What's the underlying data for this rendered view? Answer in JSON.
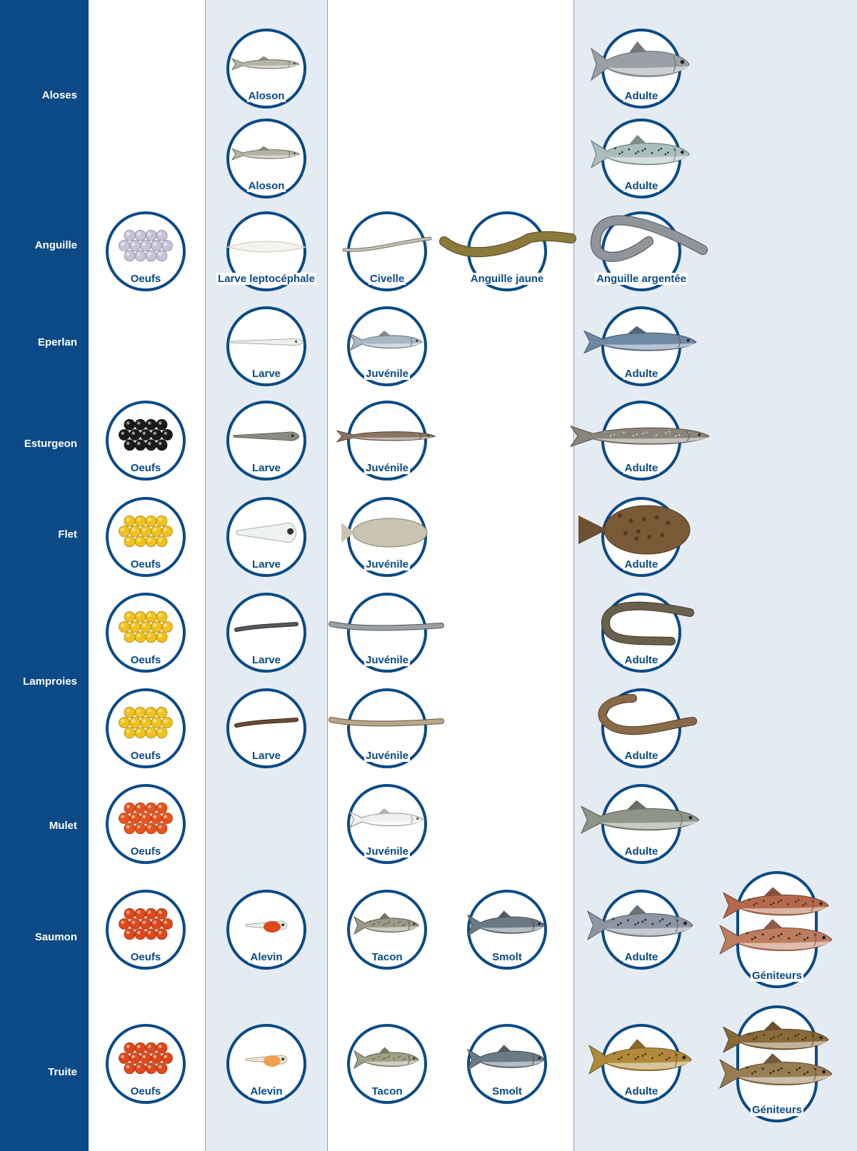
{
  "colors": {
    "sidebar": "#0b4a86",
    "band": "#e4ebf3",
    "ring": "#0b4a86",
    "label": "#0b4a86"
  },
  "species": [
    {
      "name": "Aloses"
    },
    {
      "name": "Anguille"
    },
    {
      "name": "Eperlan"
    },
    {
      "name": "Esturgeon"
    },
    {
      "name": "Flet"
    },
    {
      "name": "Lamproies"
    },
    {
      "name": "Mulet"
    },
    {
      "name": "Saumon"
    },
    {
      "name": "Truite"
    }
  ],
  "stages": [
    {
      "label": "Aloson",
      "image": "alose-juvenile-icon"
    },
    {
      "label": "Adulte",
      "image": "alose-adult-icon",
      "color": "#9aa0a5"
    },
    {
      "label": "Aloson",
      "image": "alose-juvenile-icon"
    },
    {
      "label": "Adulte",
      "image": "alose-feinte-adult-icon",
      "color": "#a9bfbc"
    },
    {
      "label": "Oeufs",
      "image": "eggs-icon",
      "color": "#c9c3da"
    },
    {
      "label": "Larve leptocéphale",
      "image": "leptocephalus-larva-icon"
    },
    {
      "label": "Civelle",
      "image": "glass-eel-icon"
    },
    {
      "label": "Anguille jaune",
      "image": "yellow-eel-icon",
      "color": "#8c7a3a"
    },
    {
      "label": "Anguille argentée",
      "image": "silver-eel-icon",
      "color": "#8f959b"
    },
    {
      "label": "Larve",
      "image": "smelt-larva-icon"
    },
    {
      "label": "Juvénile",
      "image": "smelt-juvenile-icon",
      "color": "#a9b6c4"
    },
    {
      "label": "Adulte",
      "image": "smelt-adult-icon",
      "color": "#6f88a3"
    },
    {
      "label": "Oeufs",
      "image": "eggs-icon",
      "color": "#1a1a1a"
    },
    {
      "label": "Larve",
      "image": "sturgeon-larva-icon",
      "color": "#8a8a80"
    },
    {
      "label": "Juvénile",
      "image": "sturgeon-juvenile-icon",
      "color": "#8a7560"
    },
    {
      "label": "Adulte",
      "image": "sturgeon-adult-icon",
      "color": "#8b8479"
    },
    {
      "label": "Oeufs",
      "image": "eggs-icon",
      "color": "#f2c21c"
    },
    {
      "label": "Larve",
      "image": "flounder-larva-icon"
    },
    {
      "label": "Juvénile",
      "image": "flounder-juvenile-icon",
      "color": "#c8c4b0"
    },
    {
      "label": "Adulte",
      "image": "flounder-adult-icon",
      "color": "#7a5a36"
    },
    {
      "label": "Oeufs",
      "image": "eggs-icon",
      "color": "#f2c21c"
    },
    {
      "label": "Larve",
      "image": "lamprey-larva-icon",
      "color": "#55595e"
    },
    {
      "label": "Juvénile",
      "image": "lamprey-juvenile-icon",
      "color": "#9aa0a3"
    },
    {
      "label": "Adulte",
      "image": "lamprey-adult-icon",
      "color": "#6a604e"
    },
    {
      "label": "Oeufs",
      "image": "eggs-icon",
      "color": "#f2c21c"
    },
    {
      "label": "Larve",
      "image": "lamprey-larva-icon",
      "color": "#6b4a36"
    },
    {
      "label": "Juvénile",
      "image": "lamprey-juvenile-icon",
      "color": "#b8a68a"
    },
    {
      "label": "Adulte",
      "image": "sea-lamprey-adult-icon",
      "color": "#8a6a48"
    },
    {
      "label": "Oeufs",
      "image": "eggs-icon",
      "color": "#e8541c"
    },
    {
      "label": "Juvénile",
      "image": "mullet-juvenile-icon"
    },
    {
      "label": "Adulte",
      "image": "mullet-adult-icon",
      "color": "#8f9488"
    },
    {
      "label": "Oeufs",
      "image": "eggs-icon",
      "color": "#e0481a"
    },
    {
      "label": "Alevin",
      "image": "salmon-alevin-icon",
      "color": "#e0481a"
    },
    {
      "label": "Tacon",
      "image": "salmon-parr-icon",
      "color": "#9a9a86"
    },
    {
      "label": "Smolt",
      "image": "salmon-smolt-icon",
      "color": "#6c7a86"
    },
    {
      "label": "Adulte",
      "image": "salmon-adult-icon",
      "color": "#8c97a3"
    },
    {
      "label": "Géniteurs",
      "image": "salmon-spawners-icon",
      "color": "#b46a4a"
    },
    {
      "label": "Oeufs",
      "image": "eggs-icon",
      "color": "#e0481a"
    },
    {
      "label": "Alevin",
      "image": "trout-alevin-icon",
      "color": "#f0a050"
    },
    {
      "label": "Tacon",
      "image": "trout-parr-icon",
      "color": "#a0a088"
    },
    {
      "label": "Smolt",
      "image": "trout-smolt-icon",
      "color": "#6c7a86"
    },
    {
      "label": "Adulte",
      "image": "trout-adult-icon",
      "color": "#b08a3a"
    },
    {
      "label": "Géniteurs",
      "image": "trout-spawners-icon",
      "color": "#8a6a3a"
    }
  ]
}
